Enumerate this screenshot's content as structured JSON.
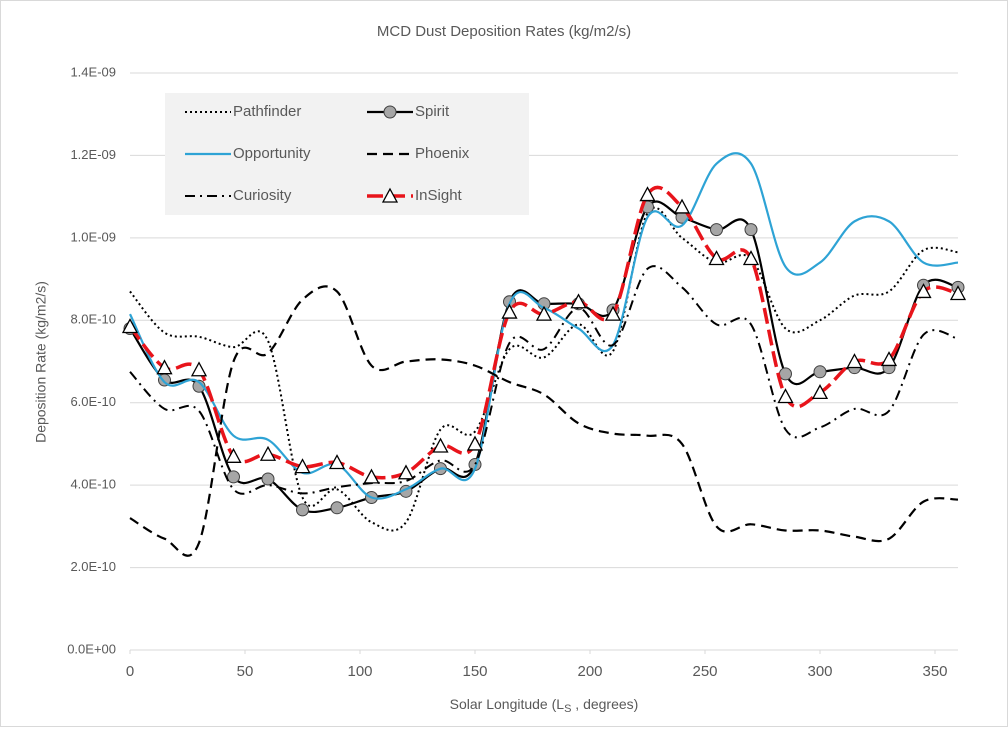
{
  "chart_data": {
    "type": "line",
    "title": "MCD Dust Deposition Rates (kg/m2/s)",
    "y_label": "Deposition Rate (kg/m2/s)",
    "x_label": [
      "Solar Longitude (L",
      "S",
      " , degrees)"
    ],
    "x": [
      0,
      15,
      30,
      45,
      60,
      75,
      90,
      105,
      120,
      135,
      150,
      165,
      180,
      195,
      210,
      225,
      240,
      255,
      270,
      285,
      300,
      315,
      330,
      345,
      360
    ],
    "xlim": [
      0,
      360
    ],
    "xticks": [
      0,
      50,
      100,
      150,
      200,
      250,
      300,
      350
    ],
    "ylim": [
      0,
      1.4e-09
    ],
    "yticks": [
      {
        "value": 0,
        "label": "0.0E+00"
      },
      {
        "value": 2e-10,
        "label": "2.0E-10"
      },
      {
        "value": 4e-10,
        "label": "4.0E-10"
      },
      {
        "value": 6e-10,
        "label": "6.0E-10"
      },
      {
        "value": 8e-10,
        "label": "8.0E-10"
      },
      {
        "value": 1e-09,
        "label": "1.0E-09"
      },
      {
        "value": 1.2e-09,
        "label": "1.2E-09"
      },
      {
        "value": 1.4e-09,
        "label": "1.4E-09"
      }
    ],
    "grid": true,
    "legend": "upper left",
    "series": [
      {
        "name": "Pathfinder",
        "color": "#000000",
        "line_style": "dotted",
        "marker": null,
        "values": [
          8.7e-10,
          7.7e-10,
          7.6e-10,
          7.35e-10,
          7.5e-10,
          3.7e-10,
          3.9e-10,
          3.1e-10,
          3.1e-10,
          5.35e-10,
          5.3e-10,
          7.3e-10,
          7.1e-10,
          7.9e-10,
          7.25e-10,
          1.06e-09,
          1e-09,
          9.4e-10,
          9.5e-10,
          7.8e-10,
          8e-10,
          8.6e-10,
          8.7e-10,
          9.7e-10,
          9.65e-10
        ]
      },
      {
        "name": "Spirit",
        "color": "#000000",
        "line_style": "solid",
        "marker": "circle",
        "values": [
          7.8e-10,
          6.55e-10,
          6.4e-10,
          4.2e-10,
          4.15e-10,
          3.4e-10,
          3.45e-10,
          3.7e-10,
          3.85e-10,
          4.4e-10,
          4.5e-10,
          8.45e-10,
          8.4e-10,
          8.4e-10,
          8.25e-10,
          1.075e-09,
          1.05e-09,
          1.02e-09,
          1.02e-09,
          6.7e-10,
          6.75e-10,
          6.85e-10,
          6.85e-10,
          8.85e-10,
          8.8e-10
        ]
      },
      {
        "name": "Opportunity",
        "color": "#2ea3d5",
        "line_style": "solid",
        "marker": null,
        "values": [
          8.15e-10,
          6.5e-10,
          6.5e-10,
          5.2e-10,
          5.1e-10,
          4.3e-10,
          4.5e-10,
          3.7e-10,
          3.9e-10,
          4.4e-10,
          4.4e-10,
          8.4e-10,
          8.3e-10,
          7.8e-10,
          7.4e-10,
          1.05e-09,
          1.03e-09,
          1.18e-09,
          1.18e-09,
          9.3e-10,
          9.4e-10,
          1.04e-09,
          1.04e-09,
          9.4e-10,
          9.4e-10
        ]
      },
      {
        "name": "Phoenix",
        "color": "#000000",
        "line_style": "dashed",
        "marker": null,
        "values": [
          3.2e-10,
          2.7e-10,
          2.6e-10,
          7e-10,
          7.2e-10,
          8.5e-10,
          8.7e-10,
          6.9e-10,
          7e-10,
          7.05e-10,
          6.9e-10,
          6.5e-10,
          6.2e-10,
          5.5e-10,
          5.25e-10,
          5.2e-10,
          5e-10,
          3e-10,
          3.05e-10,
          2.9e-10,
          2.9e-10,
          2.75e-10,
          2.7e-10,
          3.6e-10,
          3.65e-10
        ]
      },
      {
        "name": "Curiosity",
        "color": "#000000",
        "line_style": "dashdot",
        "marker": null,
        "values": [
          6.75e-10,
          5.85e-10,
          5.8e-10,
          3.9e-10,
          4e-10,
          3.8e-10,
          3.95e-10,
          4.05e-10,
          4.1e-10,
          4.6e-10,
          4.5e-10,
          7.45e-10,
          7.3e-10,
          8.3e-10,
          7.4e-10,
          9.25e-10,
          8.8e-10,
          7.9e-10,
          7.9e-10,
          5.35e-10,
          5.4e-10,
          5.85e-10,
          5.8e-10,
          7.65e-10,
          7.55e-10
        ]
      },
      {
        "name": "InSight",
        "color": "#e8141b",
        "line_style": "longdash",
        "marker": "triangle",
        "values": [
          7.85e-10,
          6.85e-10,
          6.8e-10,
          4.7e-10,
          4.75e-10,
          4.45e-10,
          4.55e-10,
          4.2e-10,
          4.3e-10,
          4.95e-10,
          5e-10,
          8.2e-10,
          8.15e-10,
          8.45e-10,
          8.15e-10,
          1.105e-09,
          1.075e-09,
          9.5e-10,
          9.5e-10,
          6.15e-10,
          6.25e-10,
          7e-10,
          7.05e-10,
          8.7e-10,
          8.65e-10
        ]
      }
    ]
  }
}
